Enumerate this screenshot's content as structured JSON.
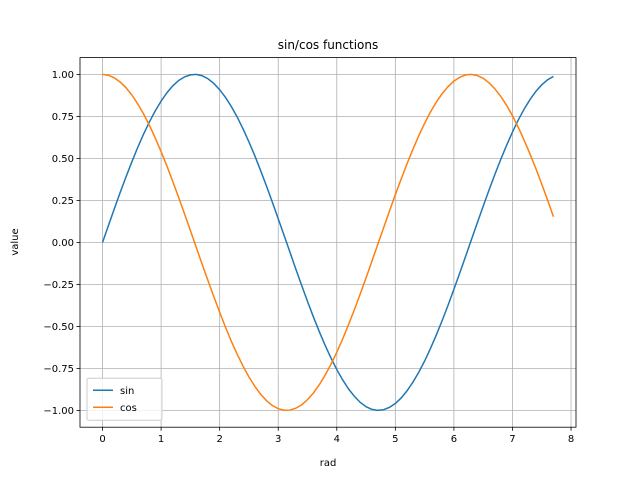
{
  "chart_data": {
    "type": "line",
    "title": "sin/cos functions",
    "x_label": "rad",
    "y_label": "value",
    "x": [
      0,
      0.1,
      0.2,
      0.3,
      0.4,
      0.5,
      0.6,
      0.7,
      0.8,
      0.9,
      1,
      1.1,
      1.2,
      1.3,
      1.4,
      1.5,
      1.6,
      1.7,
      1.8,
      1.9,
      2,
      2.1,
      2.2,
      2.3,
      2.4,
      2.5,
      2.6,
      2.7,
      2.8,
      2.9,
      3,
      3.1,
      3.2,
      3.3,
      3.4,
      3.5,
      3.6,
      3.7,
      3.8,
      3.9,
      4,
      4.1,
      4.2,
      4.3,
      4.4,
      4.5,
      4.6,
      4.7,
      4.8,
      4.9,
      5,
      5.1,
      5.2,
      5.3,
      5.4,
      5.5,
      5.6,
      5.7,
      5.8,
      5.9,
      6,
      6.1,
      6.2,
      6.3,
      6.4,
      6.5,
      6.6,
      6.7,
      6.8,
      6.9,
      7,
      7.1,
      7.2,
      7.3,
      7.4,
      7.5,
      7.6,
      7.7
    ],
    "series": [
      {
        "name": "sin",
        "color": "#1f77b4",
        "values": [
          0,
          0.1,
          0.199,
          0.296,
          0.389,
          0.479,
          0.565,
          0.644,
          0.717,
          0.783,
          0.841,
          0.891,
          0.932,
          0.964,
          0.985,
          0.997,
          1,
          0.992,
          0.974,
          0.946,
          0.909,
          0.863,
          0.808,
          0.746,
          0.675,
          0.598,
          0.516,
          0.427,
          0.335,
          0.239,
          0.141,
          0.042,
          -0.058,
          -0.158,
          -0.256,
          -0.351,
          -0.443,
          -0.53,
          -0.612,
          -0.688,
          -0.757,
          -0.818,
          -0.872,
          -0.916,
          -0.952,
          -0.978,
          -0.994,
          -1,
          -0.996,
          -0.982,
          -0.959,
          -0.926,
          -0.883,
          -0.832,
          -0.773,
          -0.706,
          -0.631,
          -0.551,
          -0.465,
          -0.374,
          -0.279,
          -0.182,
          -0.083,
          0.017,
          0.117,
          0.215,
          0.312,
          0.405,
          0.494,
          0.578,
          0.657,
          0.729,
          0.794,
          0.85,
          0.899,
          0.938,
          0.968,
          0.988
        ]
      },
      {
        "name": "cos",
        "color": "#ff7f0e",
        "values": [
          1,
          0.995,
          0.98,
          0.955,
          0.921,
          0.878,
          0.825,
          0.765,
          0.697,
          0.622,
          0.54,
          0.454,
          0.362,
          0.267,
          0.17,
          0.071,
          -0.029,
          -0.129,
          -0.227,
          -0.323,
          -0.416,
          -0.505,
          -0.589,
          -0.666,
          -0.737,
          -0.801,
          -0.857,
          -0.904,
          -0.942,
          -0.971,
          -0.99,
          -0.999,
          -0.998,
          -0.987,
          -0.967,
          -0.936,
          -0.897,
          -0.848,
          -0.791,
          -0.726,
          -0.654,
          -0.575,
          -0.49,
          -0.401,
          -0.307,
          -0.211,
          -0.112,
          -0.012,
          0.087,
          0.187,
          0.284,
          0.378,
          0.469,
          0.554,
          0.635,
          0.709,
          0.776,
          0.835,
          0.886,
          0.927,
          0.96,
          0.983,
          0.997,
          1,
          0.993,
          0.977,
          0.95,
          0.914,
          0.869,
          0.816,
          0.754,
          0.684,
          0.608,
          0.526,
          0.439,
          0.347,
          0.252,
          0.153
        ]
      }
    ],
    "xlim": [
      -0.385,
      8.085
    ],
    "ylim": [
      -1.1,
      1.1
    ],
    "xticks": [
      0,
      1,
      2,
      3,
      4,
      5,
      6,
      7,
      8
    ],
    "yticks": [
      {
        "value": -1,
        "label": "−1.00"
      },
      {
        "value": -0.75,
        "label": "−0.75"
      },
      {
        "value": -0.5,
        "label": "−0.50"
      },
      {
        "value": -0.25,
        "label": "−0.25"
      },
      {
        "value": 0,
        "label": "0.00"
      },
      {
        "value": 0.25,
        "label": "0.25"
      },
      {
        "value": 0.5,
        "label": "0.50"
      },
      {
        "value": 0.75,
        "label": "0.75"
      },
      {
        "value": 1,
        "label": "1.00"
      }
    ],
    "grid": true,
    "legend": "lower left"
  }
}
